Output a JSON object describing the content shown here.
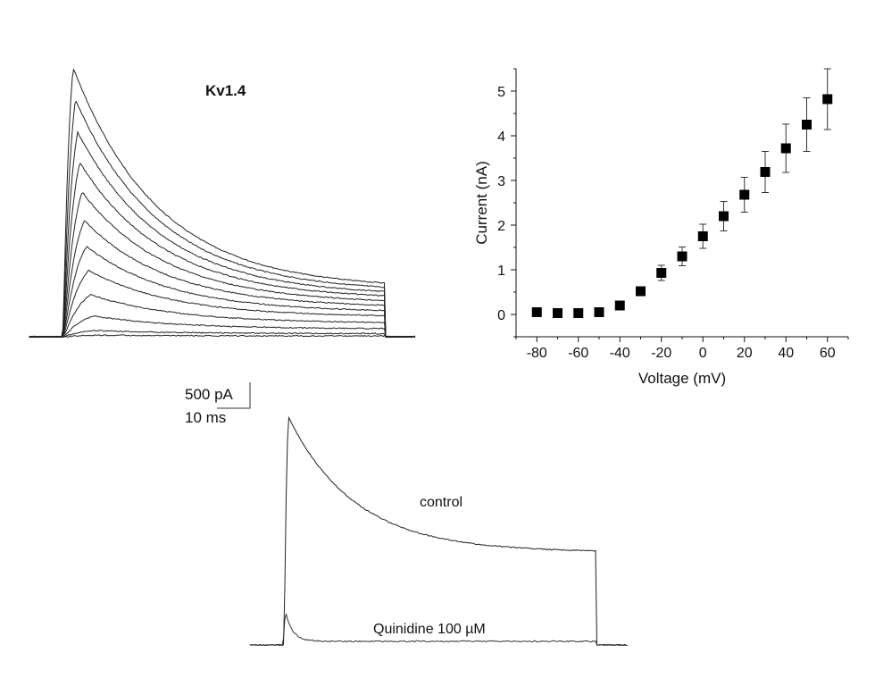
{
  "chart_data": [
    {
      "type": "line",
      "title": "Kv1.4",
      "scale_bar": {
        "current_label": "500 pA",
        "time_label": "10 ms",
        "current_pA": 500,
        "time_ms": 10
      },
      "traces_peak_pA": [
        5190,
        4570,
        3950,
        3360,
        2790,
        2240,
        1740,
        1280,
        810,
        400,
        120,
        30
      ],
      "traces_end_pA": [
        930,
        860,
        790,
        720,
        640,
        560,
        470,
        380,
        260,
        150,
        60,
        15
      ]
    },
    {
      "type": "scatter",
      "xlabel": "Voltage (mV)",
      "ylabel": "Current (nA)",
      "xlim": [
        -90,
        70
      ],
      "ylim": [
        -0.5,
        5.5
      ],
      "xticks": [
        "-80",
        "-60",
        "-40",
        "-20",
        "0",
        "20",
        "40",
        "60"
      ],
      "yticks": [
        "0",
        "1",
        "2",
        "3",
        "4",
        "5"
      ],
      "grid": false,
      "marker": "square",
      "x": [
        -80,
        -70,
        -60,
        -50,
        -40,
        -30,
        -20,
        -10,
        0,
        10,
        20,
        30,
        40,
        50,
        60
      ],
      "y": [
        0.05,
        0.03,
        0.03,
        0.05,
        0.2,
        0.52,
        0.93,
        1.3,
        1.75,
        2.2,
        2.68,
        3.19,
        3.72,
        4.25,
        4.82
      ],
      "error": [
        0,
        0,
        0,
        0,
        0,
        0,
        0.17,
        0.21,
        0.27,
        0.33,
        0.39,
        0.46,
        0.54,
        0.6,
        0.68
      ]
    },
    {
      "type": "line",
      "series": [
        {
          "name": "control",
          "peak_pA": 4400,
          "end_pA": 1390
        },
        {
          "name": "Quinidine 100 µM",
          "peak_pA": 620,
          "end_pA": 70
        }
      ]
    }
  ]
}
